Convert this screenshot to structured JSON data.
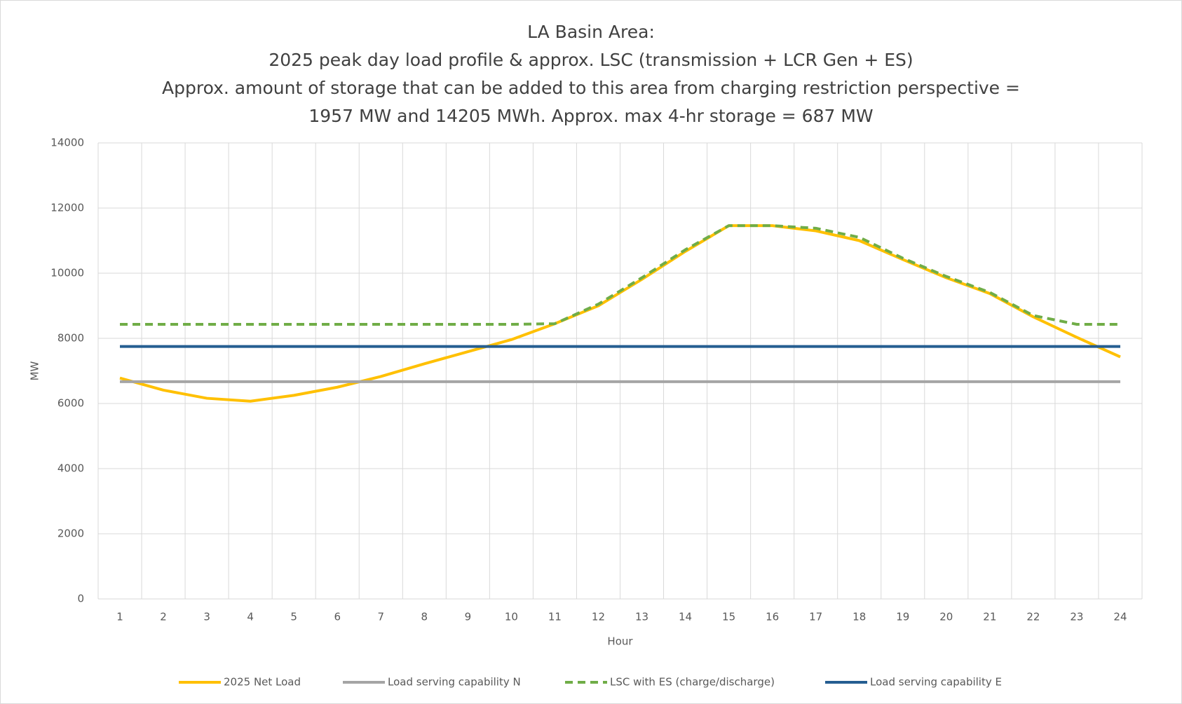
{
  "chart_data": {
    "type": "line",
    "title": [
      "LA Basin Area:",
      "2025 peak day load profile & approx. LSC (transmission + LCR Gen + ES)",
      "Approx. amount of storage that can be added to this area from charging restriction perspective =",
      "1957 MW and 14205 MWh. Approx. max 4-hr storage = 687 MW"
    ],
    "x_label": "Hour",
    "y_label": "MW",
    "categories": [
      "1",
      "2",
      "3",
      "4",
      "5",
      "6",
      "7",
      "8",
      "9",
      "10",
      "11",
      "12",
      "13",
      "14",
      "15",
      "16",
      "17",
      "18",
      "19",
      "20",
      "21",
      "22",
      "23",
      "24"
    ],
    "ylim": [
      0,
      14000
    ],
    "yticks": [
      0,
      2000,
      4000,
      6000,
      8000,
      10000,
      12000,
      14000
    ],
    "grid": true,
    "legend": "bottom",
    "series": [
      {
        "name": "2025 Net Load",
        "color": "#ffc000",
        "dash": false,
        "values": [
          6780,
          6410,
          6160,
          6070,
          6250,
          6500,
          6830,
          7220,
          7590,
          7960,
          8450,
          9000,
          9810,
          10670,
          11460,
          11460,
          11300,
          11000,
          10420,
          9860,
          9375,
          8660,
          8030,
          7430
        ]
      },
      {
        "name": "Load serving capability N",
        "color": "#a5a5a5",
        "dash": false,
        "values": [
          6670,
          6670,
          6670,
          6670,
          6670,
          6670,
          6670,
          6670,
          6670,
          6670,
          6670,
          6670,
          6670,
          6670,
          6670,
          6670,
          6670,
          6670,
          6670,
          6670,
          6670,
          6670,
          6670,
          6670
        ]
      },
      {
        "name": "LSC with ES (charge/discharge)",
        "color": "#70ad47",
        "dash": true,
        "values": [
          8430,
          8430,
          8430,
          8430,
          8430,
          8430,
          8430,
          8430,
          8430,
          8430,
          8450,
          9050,
          9860,
          10720,
          11460,
          11460,
          11380,
          11100,
          10460,
          9900,
          9410,
          8700,
          8430,
          8430
        ]
      },
      {
        "name": "Load serving capability E",
        "color": "#255e91",
        "dash": false,
        "values": [
          7750,
          7750,
          7750,
          7750,
          7750,
          7750,
          7750,
          7750,
          7750,
          7750,
          7750,
          7750,
          7750,
          7750,
          7750,
          7750,
          7750,
          7750,
          7750,
          7750,
          7750,
          7750,
          7750,
          7750
        ]
      }
    ]
  }
}
